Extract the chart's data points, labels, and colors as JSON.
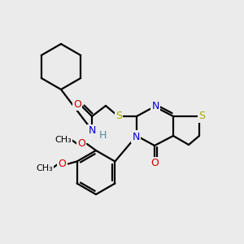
{
  "background_color": "#ebebeb",
  "atom_colors": {
    "C": "#000000",
    "N": "#0000cc",
    "O": "#cc0000",
    "S": "#aaaa00",
    "H": "#558899"
  },
  "bond_color": "#000000",
  "line_width": 1.6,
  "figsize": [
    3.0,
    3.0
  ],
  "dpi": 100
}
